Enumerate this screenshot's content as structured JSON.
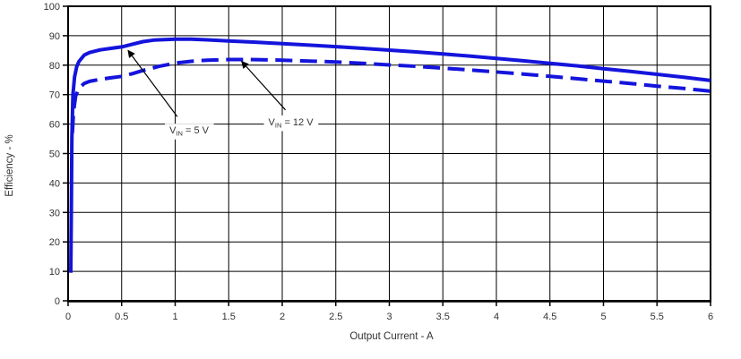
{
  "figure": {
    "background": "#ffffff"
  },
  "chart_data": {
    "type": "line",
    "title": "",
    "xlabel": "Output Current - A",
    "ylabel": "Efficiency - %",
    "xlim": [
      0,
      6
    ],
    "ylim": [
      0,
      100
    ],
    "grid": true,
    "legend_position": "inline-annotations",
    "line_color": "#1414dc",
    "grid_color": "#000000",
    "text_color": "#333333",
    "x_ticks": [
      0,
      0.5,
      1,
      1.5,
      2,
      2.5,
      3,
      3.5,
      4,
      4.5,
      5,
      5.5,
      6
    ],
    "x_tick_labels": [
      "0",
      "0.5",
      "1",
      "1.5",
      "2",
      "2.5",
      "3",
      "3.5",
      "4",
      "4.5",
      "5",
      "5.5",
      "6"
    ],
    "y_ticks": [
      0,
      10,
      20,
      30,
      40,
      50,
      60,
      70,
      80,
      90,
      100
    ],
    "y_tick_labels": [
      "0",
      "10",
      "20",
      "30",
      "40",
      "50",
      "60",
      "70",
      "80",
      "90",
      "100"
    ],
    "series": [
      {
        "name": "VIN = 5 V",
        "line_style": "solid",
        "points": [
          [
            0.025,
            9.5
          ],
          [
            0.03,
            30
          ],
          [
            0.035,
            55
          ],
          [
            0.045,
            70
          ],
          [
            0.06,
            76
          ],
          [
            0.08,
            79.5
          ],
          [
            0.1,
            81.2
          ],
          [
            0.15,
            83.4
          ],
          [
            0.2,
            84.3
          ],
          [
            0.3,
            85.2
          ],
          [
            0.4,
            85.7
          ],
          [
            0.5,
            86.2
          ],
          [
            0.6,
            87.1
          ],
          [
            0.7,
            88.0
          ],
          [
            0.8,
            88.5
          ],
          [
            0.9,
            88.7
          ],
          [
            1.0,
            88.8
          ],
          [
            1.15,
            88.8
          ],
          [
            1.3,
            88.6
          ],
          [
            1.5,
            88.2
          ],
          [
            1.75,
            87.8
          ],
          [
            2.0,
            87.3
          ],
          [
            2.25,
            86.8
          ],
          [
            2.5,
            86.3
          ],
          [
            2.75,
            85.7
          ],
          [
            3.0,
            85.1
          ],
          [
            3.25,
            84.5
          ],
          [
            3.5,
            83.8
          ],
          [
            3.75,
            83.1
          ],
          [
            4.0,
            82.3
          ],
          [
            4.25,
            81.5
          ],
          [
            4.5,
            80.6
          ],
          [
            4.75,
            79.8
          ],
          [
            5.0,
            78.8
          ],
          [
            5.25,
            77.9
          ],
          [
            5.5,
            76.9
          ],
          [
            5.75,
            75.9
          ],
          [
            6.0,
            74.8
          ]
        ]
      },
      {
        "name": "VIN = 12 V",
        "line_style": "dashed",
        "points": [
          [
            0.04,
            57
          ],
          [
            0.05,
            64
          ],
          [
            0.07,
            69.5
          ],
          [
            0.1,
            72
          ],
          [
            0.15,
            73.8
          ],
          [
            0.2,
            74.5
          ],
          [
            0.3,
            75.2
          ],
          [
            0.4,
            75.7
          ],
          [
            0.5,
            76.2
          ],
          [
            0.6,
            77.1
          ],
          [
            0.7,
            78.2
          ],
          [
            0.85,
            79.6
          ],
          [
            1.0,
            80.7
          ],
          [
            1.15,
            81.3
          ],
          [
            1.3,
            81.7
          ],
          [
            1.5,
            81.9
          ],
          [
            1.7,
            81.9
          ],
          [
            2.0,
            81.7
          ],
          [
            2.25,
            81.4
          ],
          [
            2.5,
            81.1
          ],
          [
            2.75,
            80.6
          ],
          [
            3.0,
            80.1
          ],
          [
            3.25,
            79.6
          ],
          [
            3.5,
            79.0
          ],
          [
            3.75,
            78.4
          ],
          [
            4.0,
            77.7
          ],
          [
            4.25,
            77.0
          ],
          [
            4.5,
            76.2
          ],
          [
            4.75,
            75.4
          ],
          [
            5.0,
            74.6
          ],
          [
            5.25,
            73.8
          ],
          [
            5.5,
            72.9
          ],
          [
            5.75,
            72.1
          ],
          [
            6.0,
            71.2
          ]
        ]
      }
    ],
    "annotations": [
      {
        "series": "VIN = 5 V",
        "text_pre": "V",
        "text_sub": "IN",
        "text_post": " = 5 V",
        "label_x": 1.13,
        "label_y": 58.0,
        "arrow_from_x": 1.02,
        "arrow_from_y": 62.5,
        "arrow_to_x": 0.56,
        "arrow_to_y": 85.0
      },
      {
        "series": "VIN = 12 V",
        "text_pre": "V",
        "text_sub": "IN",
        "text_post": " = 12 V",
        "label_x": 2.08,
        "label_y": 60.8,
        "arrow_from_x": 2.03,
        "arrow_from_y": 64.8,
        "arrow_to_x": 1.62,
        "arrow_to_y": 81.3
      }
    ]
  }
}
